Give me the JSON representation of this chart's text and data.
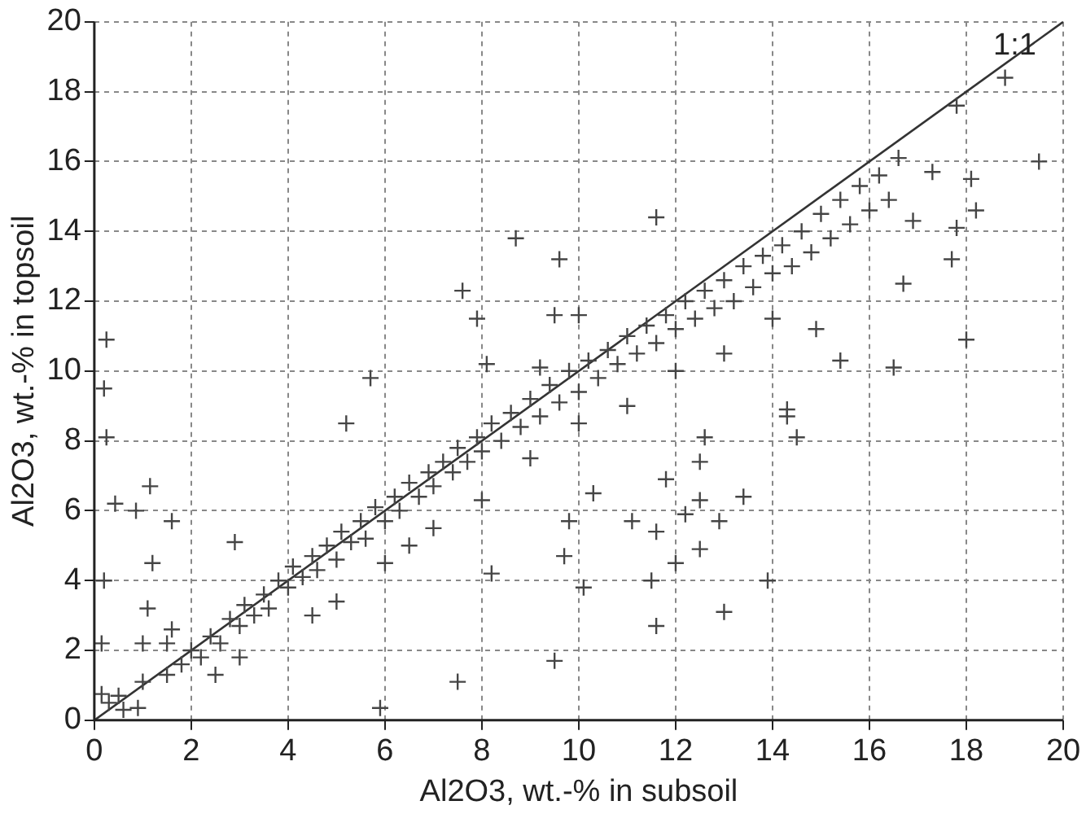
{
  "chart_data": {
    "type": "scatter",
    "xlabel": "Al2O3, wt.-% in subsoil",
    "ylabel": "Al2O3, wt.-% in topsoil",
    "xlim": [
      0,
      20
    ],
    "ylim": [
      0,
      20
    ],
    "xticks": [
      0,
      2,
      4,
      6,
      8,
      10,
      12,
      14,
      16,
      18,
      20
    ],
    "yticks": [
      0,
      2,
      4,
      6,
      8,
      10,
      12,
      14,
      16,
      18,
      20
    ],
    "grid": true,
    "annotations": [
      {
        "text": "1:1",
        "x": 19,
        "y": 19.3
      }
    ],
    "series": [
      {
        "type": "scatter",
        "marker": "cross",
        "color": "#454545",
        "x": [
          0.25,
          0.25,
          0.2,
          1.15,
          0.43,
          0.86,
          1.6,
          1.2,
          0.2,
          1.1,
          1.6,
          0.15,
          1,
          0.9,
          5.9,
          7.5,
          9.5,
          10.1,
          8.2,
          9.7,
          2.9,
          0.15,
          0.5,
          11.5,
          11.6,
          13,
          13.9,
          12,
          12.5,
          11.1,
          11.6,
          12.2,
          12.9,
          13.4,
          12.5,
          9.8,
          11.8,
          12.5,
          12.6,
          14.3,
          14.5,
          10.3,
          18.8,
          17.8,
          19.5,
          18.1,
          18.2,
          17.8,
          17.7,
          18,
          16.5,
          15.4,
          11.6,
          9.6,
          17.3,
          16.9,
          16.6,
          16.7,
          14.9,
          14.3,
          8.7,
          7.6,
          7.9,
          9.5,
          10,
          8.1,
          9.2,
          5.7,
          5.2,
          0.3,
          0.6,
          1,
          1.5,
          1.8,
          2,
          2.2,
          2.4,
          2.6,
          2.8,
          3,
          3.1,
          3.3,
          3.5,
          3.6,
          3.8,
          4,
          4.1,
          4.3,
          4.5,
          4.6,
          4.8,
          5,
          5.1,
          5.3,
          5.5,
          5.6,
          5.8,
          6,
          6.2,
          6.3,
          6.5,
          6.7,
          6.9,
          7,
          7.2,
          7.4,
          7.5,
          7.7,
          7.9,
          8,
          8.2,
          8.4,
          8.6,
          8.8,
          9,
          9.2,
          9.4,
          9.6,
          9.8,
          10,
          10.2,
          10.4,
          10.6,
          10.8,
          11,
          11.2,
          11.4,
          11.6,
          11.8,
          12,
          12.2,
          12.4,
          12.6,
          12.8,
          13,
          13.2,
          13.4,
          13.6,
          13.8,
          14,
          14.2,
          14.4,
          14.6,
          14.8,
          15,
          15.2,
          15.4,
          15.6,
          15.8,
          16,
          16.2,
          16.4,
          5,
          6,
          4.5,
          7,
          6.5,
          8,
          9,
          10,
          11,
          12,
          13,
          14,
          3,
          2.5,
          1.5
        ],
        "values": [
          10.9,
          8.1,
          9.5,
          6.7,
          6.2,
          6,
          5.7,
          4.5,
          4,
          3.2,
          2.6,
          2.2,
          2.2,
          0.35,
          0.35,
          1.1,
          1.7,
          3.8,
          4.2,
          4.7,
          5.1,
          0.75,
          0.7,
          4,
          2.7,
          3.1,
          4,
          4.5,
          4.9,
          5.7,
          5.4,
          5.9,
          5.7,
          6.4,
          6.3,
          5.7,
          6.9,
          7.4,
          8.1,
          8.7,
          8.1,
          6.5,
          18.4,
          17.6,
          16,
          15.5,
          14.6,
          14.1,
          13.2,
          10.9,
          10.1,
          10.3,
          14.4,
          13.2,
          15.7,
          14.3,
          16.1,
          12.5,
          11.2,
          8.9,
          13.8,
          12.3,
          11.5,
          11.6,
          11.6,
          10.2,
          10.1,
          9.8,
          8.5,
          0.5,
          0.3,
          1.1,
          1.3,
          1.6,
          2,
          1.8,
          2.4,
          2.2,
          2.9,
          2.7,
          3.3,
          3,
          3.6,
          3.2,
          4,
          3.8,
          4.4,
          4.1,
          4.7,
          4.3,
          5,
          4.6,
          5.4,
          5.1,
          5.7,
          5.2,
          6.1,
          5.7,
          6.4,
          6,
          6.8,
          6.4,
          7.1,
          6.7,
          7.4,
          7.1,
          7.8,
          7.4,
          8.1,
          7.7,
          8.5,
          8,
          8.8,
          8.4,
          9.2,
          8.7,
          9.6,
          9.1,
          10,
          9.4,
          10.3,
          9.8,
          10.6,
          10.2,
          11,
          10.5,
          11.3,
          10.8,
          11.6,
          11.2,
          12,
          11.5,
          12.3,
          11.8,
          12.6,
          12,
          13,
          12.4,
          13.3,
          12.8,
          13.6,
          13,
          14,
          13.4,
          14.5,
          13.8,
          14.9,
          14.2,
          15.3,
          14.6,
          15.6,
          14.9,
          3.4,
          4.5,
          3,
          5.5,
          5,
          6.3,
          7.5,
          8.5,
          9,
          10,
          10.5,
          11.5,
          1.8,
          1.3,
          2.2
        ]
      },
      {
        "type": "line",
        "color": "#333333",
        "x": [
          0,
          20
        ],
        "values": [
          0,
          20
        ]
      }
    ]
  }
}
